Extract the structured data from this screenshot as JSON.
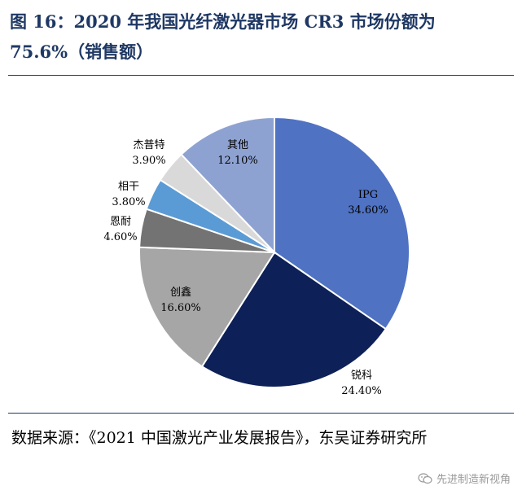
{
  "title_line1": "图 16：2020 年我国光纤激光器市场 CR3 市场份额为",
  "title_line2": "75.6%（销售额）",
  "source_text": "数据来源：《2021 中国激光产业发展报告》，东吴证券研究所",
  "watermark": {
    "icon": "wechat-icon",
    "text": "先进制造新视角"
  },
  "chart_data": {
    "type": "pie",
    "title": "",
    "start_angle_deg": 90,
    "direction": "clockwise",
    "slices": [
      {
        "label": "IPG",
        "value": 34.6,
        "text": "34.60%",
        "color": "#4f72c3",
        "label_color": "#000000"
      },
      {
        "label": "锐科",
        "value": 24.4,
        "text": "24.40%",
        "color": "#0d2057",
        "label_color": "#000000"
      },
      {
        "label": "创鑫",
        "value": 16.6,
        "text": "16.60%",
        "color": "#a6a6a6",
        "label_color": "#000000"
      },
      {
        "label": "恩耐",
        "value": 4.6,
        "text": "4.60%",
        "color": "#737373",
        "label_color": "#000000"
      },
      {
        "label": "相干",
        "value": 3.8,
        "text": "3.80%",
        "color": "#5b9bd5",
        "label_color": "#000000"
      },
      {
        "label": "杰普特",
        "value": 3.9,
        "text": "3.90%",
        "color": "#d9d9d9",
        "label_color": "#000000"
      },
      {
        "label": "其他",
        "value": 12.1,
        "text": "12.10%",
        "color": "#8ea2d2",
        "label_color": "#000000"
      }
    ]
  }
}
